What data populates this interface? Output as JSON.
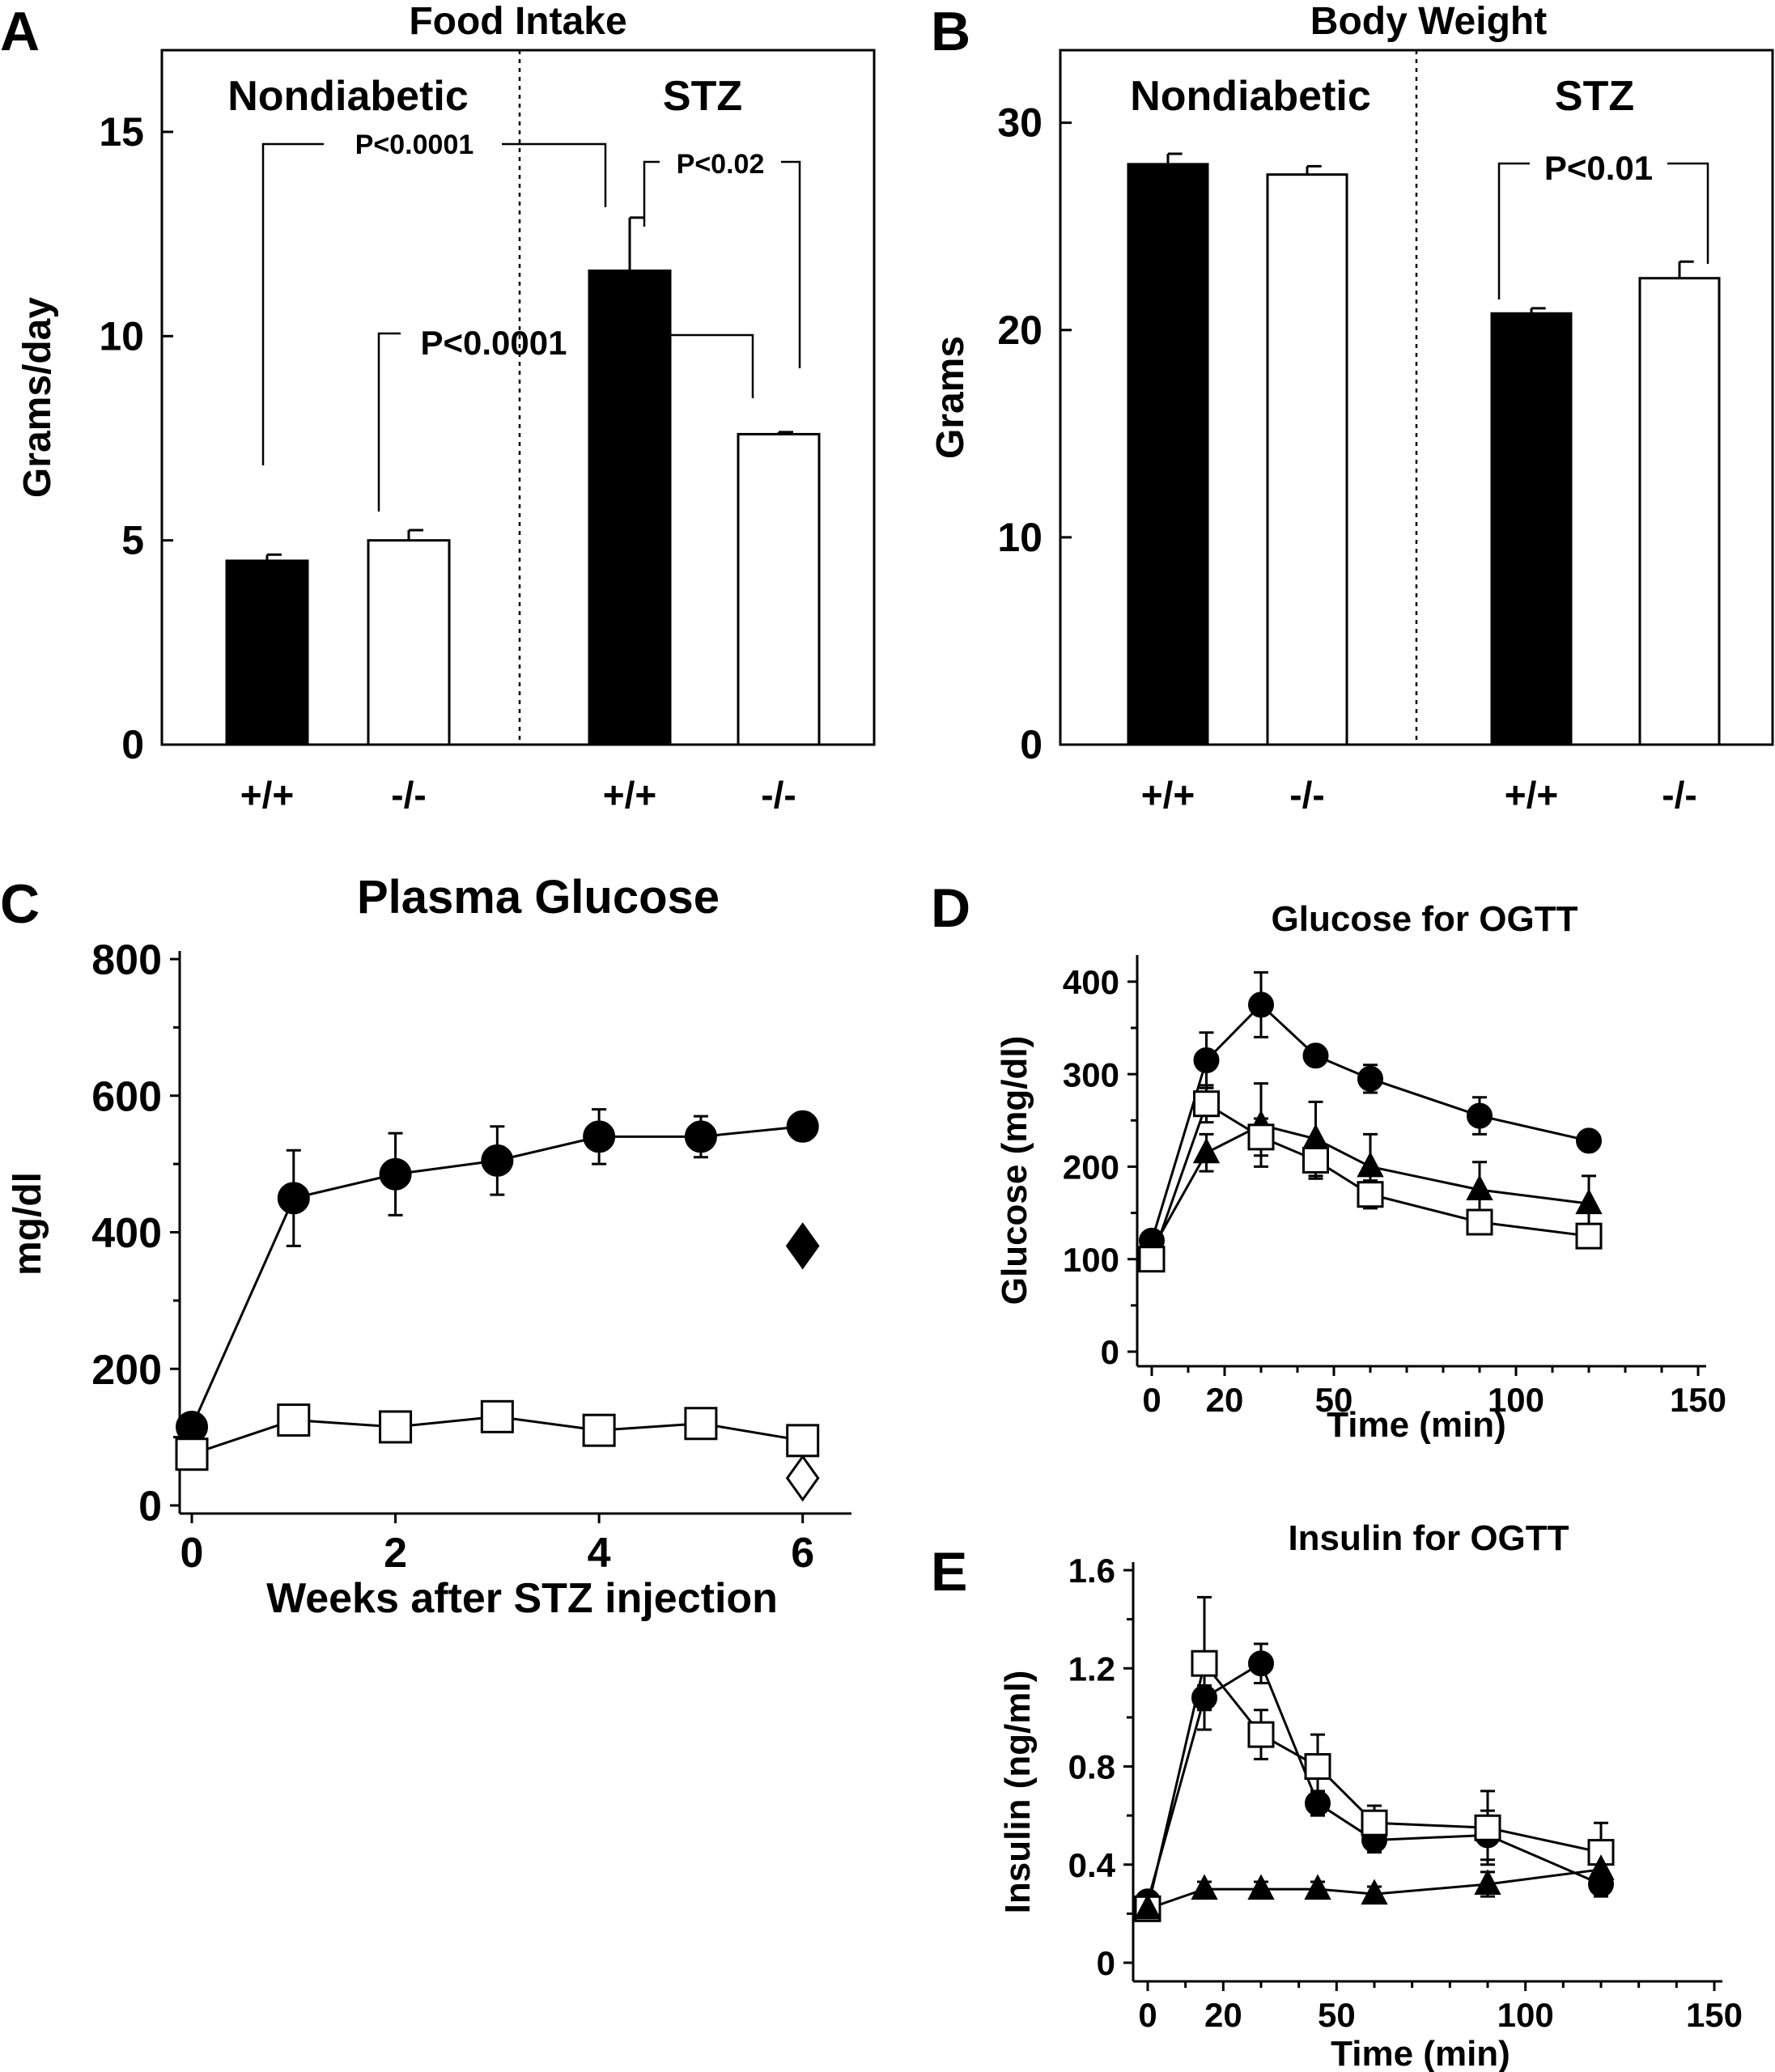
{
  "chart_data": [
    {
      "panel": "A",
      "type": "bar",
      "title": "Food Intake",
      "ylabel": "Grams/day",
      "ylim": [
        0,
        17
      ],
      "yticks": [
        0,
        5,
        10,
        15
      ],
      "groups": [
        "Nondiabetic",
        "STZ"
      ],
      "categories": [
        "+/+",
        "-/-",
        "+/+",
        "-/-"
      ],
      "values": [
        4.5,
        5.0,
        11.6,
        7.6
      ],
      "errors": [
        0.15,
        0.25,
        1.3,
        0.05
      ],
      "fills": [
        "#000000",
        "#ffffff",
        "#000000",
        "#ffffff"
      ],
      "annotations": [
        "P<0.0001",
        "P<0.02",
        "P<0.0001"
      ]
    },
    {
      "panel": "B",
      "type": "bar",
      "title": "Body Weight",
      "ylabel": "Grams",
      "ylim": [
        0,
        33.5
      ],
      "yticks": [
        0,
        10,
        20,
        30
      ],
      "groups": [
        "Nondiabetic",
        "STZ"
      ],
      "categories": [
        "+/+",
        "-/-",
        "+/+",
        "-/-"
      ],
      "values": [
        28.0,
        27.5,
        20.8,
        22.5
      ],
      "errors": [
        0.5,
        0.4,
        0.25,
        0.8
      ],
      "fills": [
        "#000000",
        "#ffffff",
        "#000000",
        "#ffffff"
      ],
      "annotations": [
        "P<0.01"
      ]
    },
    {
      "panel": "C",
      "type": "line",
      "title": "Plasma Glucose",
      "xlabel": "Weeks after STZ injection",
      "ylabel": "mg/dl",
      "xlim": [
        0,
        6.4
      ],
      "ylim": [
        0,
        800
      ],
      "xticks": [
        0,
        2,
        4,
        6
      ],
      "yticks": [
        0,
        200,
        400,
        600,
        800
      ],
      "series": [
        {
          "marker": "circle-filled",
          "x": [
            0,
            1,
            2,
            3,
            4,
            5,
            6
          ],
          "y": [
            115,
            450,
            485,
            505,
            540,
            540,
            555
          ],
          "err": [
            0,
            70,
            60,
            50,
            40,
            30,
            20
          ]
        },
        {
          "marker": "square-open",
          "x": [
            0,
            1,
            2,
            3,
            4,
            5,
            6
          ],
          "y": [
            75,
            125,
            115,
            130,
            110,
            120,
            95
          ],
          "err": [
            0,
            20,
            20,
            10,
            10,
            20,
            10
          ]
        },
        {
          "marker": "diamond-filled",
          "x": [
            6
          ],
          "y": [
            380
          ],
          "err": [
            0
          ]
        },
        {
          "marker": "diamond-open",
          "x": [
            6
          ],
          "y": [
            40
          ],
          "err": [
            0
          ]
        }
      ]
    },
    {
      "panel": "D",
      "type": "line",
      "title": "Glucose for OGTT",
      "xlabel": "Time (min)",
      "ylabel": "Glucose (mg/dl)",
      "xlim": [
        0,
        150
      ],
      "ylim": [
        0,
        420
      ],
      "xticks": [
        0,
        20,
        50,
        100,
        150
      ],
      "yticks": [
        0,
        100,
        200,
        300,
        400
      ],
      "series": [
        {
          "marker": "circle-filled",
          "x": [
            0,
            15,
            30,
            45,
            60,
            90,
            120
          ],
          "y": [
            120,
            315,
            375,
            320,
            295,
            255,
            228
          ],
          "err": [
            10,
            30,
            35,
            10,
            15,
            20,
            5
          ]
        },
        {
          "marker": "triangle-filled",
          "x": [
            0,
            15,
            30,
            45,
            60,
            90,
            120
          ],
          "y": [
            110,
            215,
            245,
            230,
            200,
            175,
            160
          ],
          "err": [
            10,
            20,
            45,
            40,
            35,
            30,
            30
          ]
        },
        {
          "marker": "square-open",
          "x": [
            0,
            15,
            30,
            45,
            60,
            90,
            120
          ],
          "y": [
            100,
            268,
            232,
            207,
            170,
            140,
            125
          ],
          "err": [
            10,
            20,
            20,
            20,
            15,
            10,
            10
          ]
        }
      ]
    },
    {
      "panel": "E",
      "type": "line",
      "title": "Insulin for OGTT",
      "xlabel": "Time (min)",
      "ylabel": "Insulin (ng/ml)",
      "xlim": [
        0,
        150
      ],
      "ylim": [
        0,
        1.6
      ],
      "xticks": [
        0,
        20,
        50,
        100,
        150
      ],
      "yticks": [
        0,
        0.4,
        0.8,
        1.2,
        1.6
      ],
      "ytick_labels": [
        "0",
        "0.4",
        "0.8",
        "1.2",
        "1.6"
      ],
      "series": [
        {
          "marker": "circle-filled",
          "x": [
            0,
            15,
            30,
            45,
            60,
            90,
            120
          ],
          "y": [
            0.25,
            1.08,
            1.22,
            0.65,
            0.5,
            0.52,
            0.32
          ],
          "err": [
            0.02,
            0.05,
            0.08,
            0.05,
            0.05,
            0.1,
            0.05
          ]
        },
        {
          "marker": "square-open",
          "x": [
            0,
            15,
            30,
            45,
            60,
            90,
            120
          ],
          "y": [
            0.22,
            1.22,
            0.93,
            0.8,
            0.57,
            0.55,
            0.45
          ],
          "err": [
            0.02,
            0.27,
            0.1,
            0.13,
            0.07,
            0.15,
            0.12
          ]
        },
        {
          "marker": "triangle-filled",
          "x": [
            0,
            15,
            30,
            45,
            60,
            90,
            120
          ],
          "y": [
            0.22,
            0.3,
            0.3,
            0.3,
            0.28,
            0.32,
            0.38
          ],
          "err": [
            0.02,
            0.03,
            0.03,
            0.03,
            0.03,
            0.05,
            0.04
          ]
        }
      ]
    }
  ]
}
